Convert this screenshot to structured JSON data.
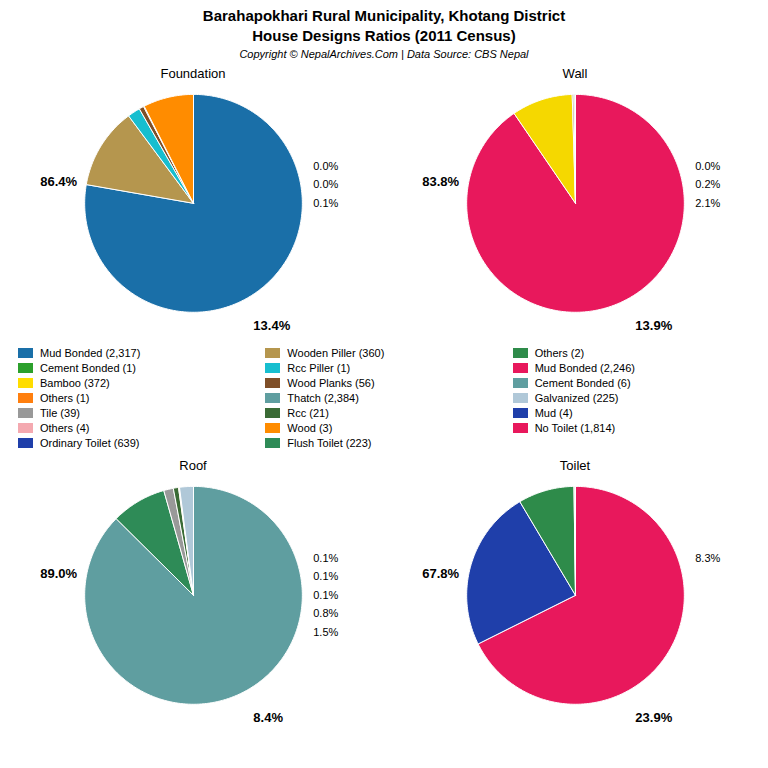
{
  "title": "Barahapokhari Rural Municipality, Khotang District\nHouse Designs Ratios (2011 Census)",
  "subtitle": "Copyright © NepalArchives.Com | Data Source: CBS Nepal",
  "legend_entries": [
    {
      "name": "Mud Bonded (2,317)",
      "color": "#1a6fa8"
    },
    {
      "name": "Cement Bonded (1)",
      "color": "#2ca02c"
    },
    {
      "name": "Bamboo (372)",
      "color": "#ffdd00"
    },
    {
      "name": "Others (1)",
      "color": "#ff7f0e"
    },
    {
      "name": "Tile (39)",
      "color": "#999999"
    },
    {
      "name": "Others (4)",
      "color": "#f4a9b0"
    },
    {
      "name": "Ordinary Toilet (639)",
      "color": "#1f3faa"
    },
    {
      "name": "Wooden Piller (360)",
      "color": "#b5964e"
    },
    {
      "name": "Rcc Piller (1)",
      "color": "#17becf"
    },
    {
      "name": "Wood Planks (56)",
      "color": "#7f4f28"
    },
    {
      "name": "Thatch (2,384)",
      "color": "#5f9ea0"
    },
    {
      "name": "Rcc (21)",
      "color": "#3a6b35"
    },
    {
      "name": "Wood (3)",
      "color": "#ff8c00"
    },
    {
      "name": "Flush Toilet (223)",
      "color": "#2e8b57"
    },
    {
      "name": "Others (2)",
      "color": "#2e8b4a"
    },
    {
      "name": "Mud Bonded (2,246)",
      "color": "#e8185c"
    },
    {
      "name": "Cement Bonded (6)",
      "color": "#5f9ea0"
    },
    {
      "name": "Galvanized (225)",
      "color": "#b0c8d8"
    },
    {
      "name": "Mud (4)",
      "color": "#1f3faa"
    },
    {
      "name": "No Toilet (1,814)",
      "color": "#e8185c"
    }
  ],
  "chart_data": [
    {
      "type": "pie",
      "title": "Foundation",
      "values": [
        2317,
        360,
        56,
        21,
        3,
        223
      ],
      "colors": [
        "#1a6fa8",
        "#b5964e",
        "#17becf",
        "#7f4f28",
        "#3a6b35",
        "#ff8c00"
      ],
      "annotations": [
        "86.4%",
        "0.0%",
        "0.0%",
        "0.1%",
        "13.4%"
      ]
    },
    {
      "type": "pie",
      "title": "Wall",
      "values": [
        2246,
        225,
        6,
        4,
        2
      ],
      "colors": [
        "#e8185c",
        "#f5d800",
        "#8b5e1a",
        "#5f9ea0",
        "#2e8b4a"
      ],
      "annotations": [
        "83.8%",
        "0.0%",
        "0.2%",
        "2.1%",
        "13.9%"
      ]
    },
    {
      "type": "pie",
      "title": "Roof",
      "values": [
        2384,
        223,
        39,
        21,
        3,
        1,
        56
      ],
      "colors": [
        "#5f9ea0",
        "#2e8b57",
        "#999999",
        "#3a6b35",
        "#ff8c00",
        "#b5964e",
        "#b0c8d8"
      ],
      "annotations": [
        "89.0%",
        "0.1%",
        "0.1%",
        "0.1%",
        "0.8%",
        "1.5%",
        "8.4%"
      ]
    },
    {
      "type": "pie",
      "title": "Toilet",
      "values": [
        1814,
        639,
        223,
        4,
        2
      ],
      "colors": [
        "#e8185c",
        "#1f3faa",
        "#2e8b4a",
        "#999999",
        "#5f9ea0"
      ],
      "annotations": [
        "67.8%",
        "8.3%",
        "23.9%"
      ]
    }
  ]
}
